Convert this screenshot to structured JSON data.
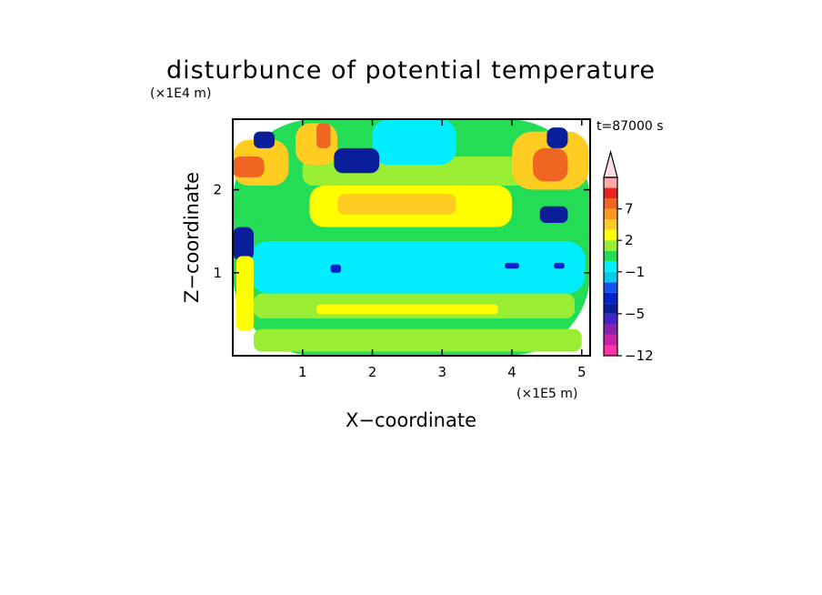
{
  "chart_data": {
    "type": "heatmap",
    "title": "disturbunce of potential temperature",
    "xlabel": "X−coordinate",
    "ylabel": "Z−coordinate",
    "x_unit": "(×1E5 m)",
    "y_unit": "(×1E4 m)",
    "time_label": "t=87000 s",
    "xlim": [
      0,
      5.12
    ],
    "ylim": [
      0,
      2.85
    ],
    "x_ticks": [
      1,
      2,
      3,
      4,
      5
    ],
    "x_tick_labels": [
      "1",
      "2",
      "3",
      "4",
      "5"
    ],
    "y_ticks": [
      1,
      2
    ],
    "y_tick_labels": [
      "1",
      "2"
    ],
    "grid": false,
    "colorbar": {
      "levels": [
        -12,
        -10,
        -8,
        -6,
        -5,
        -4,
        -3,
        -2,
        -1,
        0,
        1,
        2,
        3,
        5,
        7,
        9,
        11
      ],
      "colors": [
        "#ff33aa",
        "#cc22aa",
        "#8822aa",
        "#4422cc",
        "#0a1e99",
        "#0022cc",
        "#1155ee",
        "#00ccee",
        "#00eeff",
        "#22dd55",
        "#99ee33",
        "#ffff00",
        "#ffcc22",
        "#ff9922",
        "#ee6622",
        "#ee2222",
        "#ffaaaa"
      ],
      "tick_values": [
        -12,
        -5,
        -1,
        2,
        7
      ],
      "tick_labels": [
        "−12",
        "−5",
        "−1",
        "2",
        "7"
      ],
      "extend": "max",
      "extend_color": "#ffdddd"
    },
    "field_regions": [
      {
        "level": 0,
        "x": [
          0.0,
          5.12
        ],
        "z": [
          0.0,
          2.85
        ]
      },
      {
        "level": -1,
        "x": [
          0.25,
          5.05
        ],
        "z": [
          0.75,
          1.38
        ]
      },
      {
        "level": 0,
        "x": [
          0.3,
          5.1
        ],
        "z": [
          1.38,
          1.6
        ]
      },
      {
        "level": 2,
        "x": [
          1.1,
          4.0
        ],
        "z": [
          1.55,
          2.05
        ]
      },
      {
        "level": 3,
        "x": [
          1.5,
          3.2
        ],
        "z": [
          1.7,
          1.95
        ]
      },
      {
        "level": 1,
        "x": [
          1.0,
          4.2
        ],
        "z": [
          2.05,
          2.4
        ]
      },
      {
        "level": -1,
        "x": [
          2.0,
          3.2
        ],
        "z": [
          2.3,
          2.85
        ]
      },
      {
        "level": 1,
        "x": [
          0.3,
          4.9
        ],
        "z": [
          0.45,
          0.75
        ]
      },
      {
        "level": 2,
        "x": [
          1.2,
          3.8
        ],
        "z": [
          0.5,
          0.62
        ]
      },
      {
        "level": 1,
        "x": [
          0.3,
          5.0
        ],
        "z": [
          0.05,
          0.32
        ]
      },
      {
        "level": 3,
        "x": [
          0.0,
          0.8
        ],
        "z": [
          2.05,
          2.6
        ]
      },
      {
        "level": 7,
        "x": [
          0.0,
          0.45
        ],
        "z": [
          2.15,
          2.4
        ]
      },
      {
        "level": 3,
        "x": [
          0.9,
          1.5
        ],
        "z": [
          2.3,
          2.8
        ]
      },
      {
        "level": 7,
        "x": [
          1.2,
          1.4
        ],
        "z": [
          2.5,
          2.8
        ]
      },
      {
        "level": -5,
        "x": [
          1.45,
          2.1
        ],
        "z": [
          2.2,
          2.5
        ]
      },
      {
        "level": -5,
        "x": [
          0.3,
          0.6
        ],
        "z": [
          2.5,
          2.7
        ]
      },
      {
        "level": -5,
        "x": [
          0.0,
          0.3
        ],
        "z": [
          1.15,
          1.55
        ]
      },
      {
        "level": 3,
        "x": [
          4.0,
          5.1
        ],
        "z": [
          2.0,
          2.7
        ]
      },
      {
        "level": 7,
        "x": [
          4.3,
          4.8
        ],
        "z": [
          2.1,
          2.5
        ]
      },
      {
        "level": -5,
        "x": [
          4.4,
          4.8
        ],
        "z": [
          1.6,
          1.8
        ]
      },
      {
        "level": -5,
        "x": [
          4.5,
          4.8
        ],
        "z": [
          2.5,
          2.75
        ]
      },
      {
        "level": 2,
        "x": [
          0.05,
          0.3
        ],
        "z": [
          0.3,
          1.2
        ]
      },
      {
        "level": -4,
        "x": [
          1.4,
          1.55
        ],
        "z": [
          1.0,
          1.1
        ]
      },
      {
        "level": -4,
        "x": [
          3.9,
          4.1
        ],
        "z": [
          1.05,
          1.12
        ]
      },
      {
        "level": -4,
        "x": [
          4.6,
          4.75
        ],
        "z": [
          1.05,
          1.12
        ]
      }
    ]
  }
}
